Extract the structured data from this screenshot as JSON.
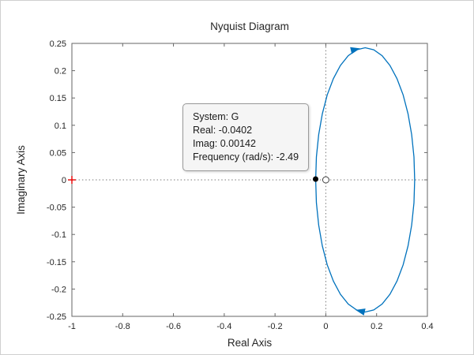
{
  "datatip": {
    "system": "System: G",
    "real": "Real: -0.0402",
    "imag": "Imag: 0.00142",
    "frequency": "Frequency (rad/s): -2.49"
  },
  "chart_data": {
    "type": "line",
    "title": "Nyquist Diagram",
    "xlabel": "Real Axis",
    "ylabel": "Imaginary Axis",
    "xlim": [
      -1,
      0.4
    ],
    "ylim": [
      -0.25,
      0.25
    ],
    "xticks": [
      -1,
      -0.8,
      -0.6,
      -0.4,
      -0.2,
      0,
      0.2,
      0.4
    ],
    "xtick_labels": [
      "-1",
      "-0.8",
      "-0.6",
      "-0.4",
      "-0.2",
      "0",
      "0.2",
      "0.4"
    ],
    "yticks": [
      -0.25,
      -0.2,
      -0.15,
      -0.1,
      -0.05,
      0,
      0.05,
      0.1,
      0.15,
      0.2,
      0.25
    ],
    "ytick_labels": [
      "-0.25",
      "-0.2",
      "-0.15",
      "-0.1",
      "-0.05",
      "0",
      "0.05",
      "0.1",
      "0.15",
      "0.2",
      "0.25"
    ],
    "grid": false,
    "zero_lines_dotted": true,
    "legend": null,
    "critical_point": {
      "x": -1,
      "y": 0,
      "color": "#e60000",
      "marker": "+"
    },
    "origin_marker": {
      "x": 0,
      "y": 0,
      "marker": "o"
    },
    "datatip_point": {
      "x": -0.0402,
      "y": 0.00142,
      "color": "#000000",
      "marker": "filled-circle"
    },
    "arrows": [
      {
        "x": 0.114,
        "y": 0.2385,
        "angle_deg": -13
      },
      {
        "x": 0.138,
        "y": -0.2405,
        "angle_deg": 193
      }
    ],
    "series": [
      {
        "name": "G",
        "color": "#0072BD",
        "points": [
          [
            0.35,
            0
          ],
          [
            0.347,
            0.042
          ],
          [
            0.3382,
            0.0828
          ],
          [
            0.3239,
            0.121
          ],
          [
            0.3044,
            0.1556
          ],
          [
            0.2803,
            0.1854
          ],
          [
            0.2525,
            0.2096
          ],
          [
            0.2217,
            0.2274
          ],
          [
            0.1889,
            0.2383
          ],
          [
            0.155,
            0.242
          ],
          [
            0.1211,
            0.2383
          ],
          [
            0.0883,
            0.2274
          ],
          [
            0.0575,
            0.2096
          ],
          [
            0.0297,
            0.1854
          ],
          [
            0.0056,
            0.1556
          ],
          [
            -0.0139,
            0.121
          ],
          [
            -0.0282,
            0.0828
          ],
          [
            -0.037,
            0.042
          ],
          [
            -0.04,
            0
          ],
          [
            -0.037,
            -0.042
          ],
          [
            -0.0282,
            -0.0828
          ],
          [
            -0.0139,
            -0.121
          ],
          [
            0.0056,
            -0.1556
          ],
          [
            0.0297,
            -0.1854
          ],
          [
            0.0575,
            -0.2096
          ],
          [
            0.0883,
            -0.2274
          ],
          [
            0.1211,
            -0.2383
          ],
          [
            0.155,
            -0.242
          ],
          [
            0.1889,
            -0.2383
          ],
          [
            0.2217,
            -0.2274
          ],
          [
            0.2525,
            -0.2096
          ],
          [
            0.2803,
            -0.1854
          ],
          [
            0.3044,
            -0.1556
          ],
          [
            0.3239,
            -0.121
          ],
          [
            0.3382,
            -0.0828
          ],
          [
            0.347,
            -0.042
          ],
          [
            0.35,
            0
          ]
        ]
      }
    ]
  }
}
